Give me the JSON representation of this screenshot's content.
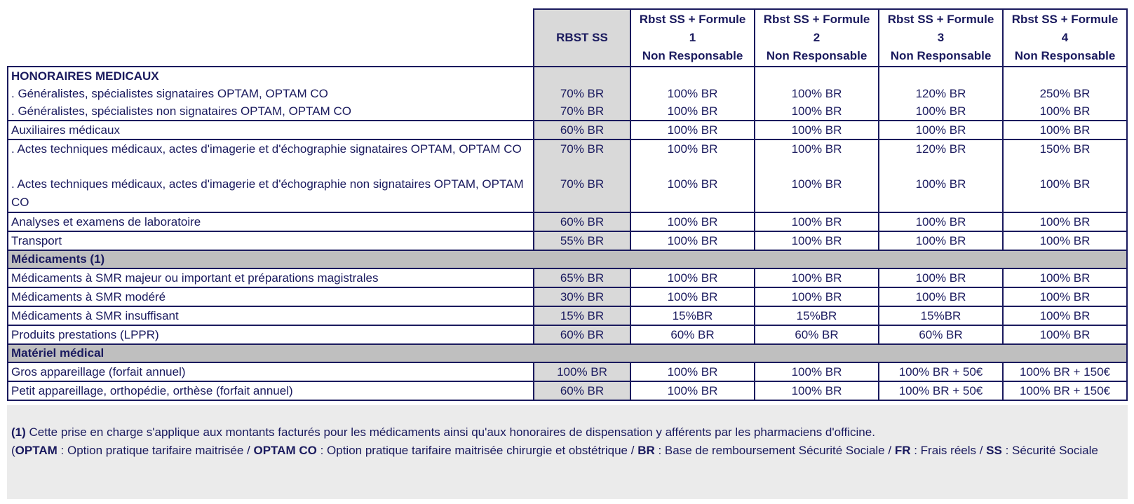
{
  "headers": {
    "ss": "RBST SS",
    "f1": [
      "Rbst SS + Formule 1",
      "Non Responsable"
    ],
    "f2": [
      "Rbst SS + Formule 2",
      "Non Responsable"
    ],
    "f3": [
      "Rbst SS + Formule 3",
      "Non Responsable"
    ],
    "f4": [
      "Rbst SS + Formule  4",
      "Non  Responsable"
    ]
  },
  "sections": {
    "honoraires": "HONORAIRES MEDICAUX",
    "medicaments": "Médicaments (1)",
    "materiel": "Matériel médical"
  },
  "rows": [
    {
      "label": ". Généralistes, spécialistes signataires OPTAM, OPTAM CO",
      "ss": "70% BR",
      "f1": "100% BR",
      "f2": "100% BR",
      "f3": "120% BR",
      "f4": "250% BR"
    },
    {
      "label": ". Généralistes, spécialistes non signataires OPTAM, OPTAM CO",
      "ss": "70% BR",
      "f1": "100% BR",
      "f2": "100% BR",
      "f3": "100% BR",
      "f4": "100% BR"
    },
    {
      "label": "Auxiliaires médicaux",
      "ss": "60% BR",
      "f1": "100% BR",
      "f2": "100% BR",
      "f3": "100% BR",
      "f4": "100% BR"
    },
    {
      "label": ". Actes techniques médicaux, actes d'imagerie et d'échographie signataires OPTAM, OPTAM CO",
      "ss": "70% BR",
      "f1": "100% BR",
      "f2": "100% BR",
      "f3": "120% BR",
      "f4": "150% BR"
    },
    {
      "label": ". Actes techniques médicaux, actes d'imagerie et d'échographie non signataires OPTAM, OPTAM CO",
      "ss": "70% BR",
      "f1": "100% BR",
      "f2": "100% BR",
      "f3": "100% BR",
      "f4": "100% BR"
    },
    {
      "label": "Analyses et examens de laboratoire",
      "ss": "60% BR",
      "f1": "100% BR",
      "f2": "100% BR",
      "f3": "100% BR",
      "f4": "100% BR"
    },
    {
      "label": "Transport",
      "ss": "55% BR",
      "f1": "100% BR",
      "f2": "100% BR",
      "f3": "100% BR",
      "f4": "100% BR"
    },
    {
      "label": "Médicaments à SMR majeur ou important et préparations magistrales",
      "ss": "65% BR",
      "f1": "100% BR",
      "f2": "100% BR",
      "f3": "100% BR",
      "f4": "100% BR"
    },
    {
      "label": "Médicaments à SMR modéré",
      "ss": "30% BR",
      "f1": "100% BR",
      "f2": "100% BR",
      "f3": "100% BR",
      "f4": "100% BR"
    },
    {
      "label": "Médicaments à SMR insuffisant",
      "ss": "15% BR",
      "f1": "15%BR",
      "f2": "15%BR",
      "f3": "15%BR",
      "f4": "100% BR"
    },
    {
      "label": "Produits prestations (LPPR)",
      "ss": "60% BR",
      "f1": "60% BR",
      "f2": "60% BR",
      "f3": "60% BR",
      "f4": "100% BR"
    },
    {
      "label": "Gros appareillage (forfait annuel)",
      "ss": "100% BR",
      "f1": "100% BR",
      "f2": "100% BR",
      "f3": "100% BR + 50€",
      "f4": "100% BR + 150€"
    },
    {
      "label": "Petit appareillage, orthopédie, orthèse (forfait annuel)",
      "ss": "60% BR",
      "f1": "100% BR",
      "f2": "100% BR",
      "f3": "100% BR + 50€",
      "f4": "100% BR + 150€"
    }
  ],
  "footnote": {
    "n1_mark": "(1)",
    "n1_text": " Cette prise en charge s'applique aux montants facturés pour les médicaments ainsi qu'aux honoraires de dispensation y afférents par les pharmaciens d'officine.",
    "p_open": "(",
    "optam": "OPTAM",
    "optam_def": " : Option pratique tarifaire maitrisée / ",
    "optamco": "OPTAM CO",
    "optamco_def": " : Option pratique tarifaire maitrisée chirurgie et obstétrique / ",
    "br": "BR",
    "br_def": " : Base de remboursement Sécurité Sociale /  ",
    "fr": "FR",
    "fr_def": " : Frais réels / ",
    "ss": "SS",
    "ss_def": " : Sécurité Sociale"
  }
}
